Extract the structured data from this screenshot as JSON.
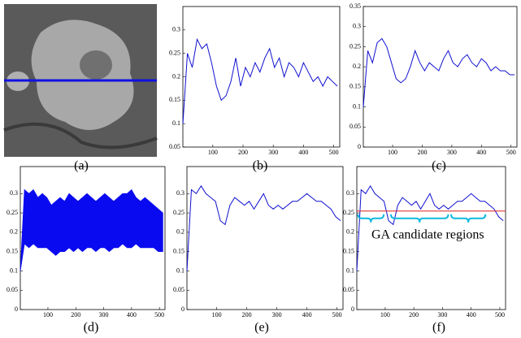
{
  "image": {
    "caption": "(a)"
  },
  "chart_data": [
    {
      "type": "line",
      "caption": "(b)",
      "color": "#1010d0",
      "x": [
        1,
        16,
        32,
        48,
        64,
        80,
        96,
        112,
        128,
        144,
        160,
        176,
        192,
        208,
        224,
        240,
        256,
        272,
        288,
        304,
        320,
        336,
        352,
        368,
        384,
        400,
        416,
        432,
        448,
        464,
        480,
        496,
        512
      ],
      "values": [
        0.1,
        0.25,
        0.22,
        0.28,
        0.26,
        0.27,
        0.23,
        0.18,
        0.15,
        0.16,
        0.19,
        0.24,
        0.18,
        0.22,
        0.2,
        0.23,
        0.21,
        0.24,
        0.26,
        0.22,
        0.24,
        0.2,
        0.23,
        0.22,
        0.2,
        0.23,
        0.21,
        0.19,
        0.2,
        0.18,
        0.2,
        0.19,
        0.18
      ],
      "xlim": [
        1,
        520
      ],
      "xticks": [
        100,
        200,
        300,
        400,
        500
      ],
      "ylim": [
        0.05,
        0.35
      ],
      "yticks": [
        0.05,
        0.1,
        0.15,
        0.2,
        0.25,
        0.3
      ]
    },
    {
      "type": "line",
      "caption": "(c)",
      "color": "#1010d0",
      "x": [
        1,
        16,
        32,
        48,
        64,
        80,
        96,
        112,
        128,
        144,
        160,
        176,
        192,
        208,
        224,
        240,
        256,
        272,
        288,
        304,
        320,
        336,
        352,
        368,
        384,
        400,
        416,
        432,
        448,
        464,
        480,
        496,
        512
      ],
      "values": [
        0.1,
        0.24,
        0.21,
        0.26,
        0.27,
        0.25,
        0.21,
        0.17,
        0.16,
        0.17,
        0.2,
        0.24,
        0.21,
        0.19,
        0.21,
        0.2,
        0.19,
        0.22,
        0.24,
        0.21,
        0.2,
        0.22,
        0.23,
        0.21,
        0.2,
        0.22,
        0.21,
        0.19,
        0.2,
        0.19,
        0.19,
        0.18,
        0.18
      ],
      "xlim": [
        1,
        520
      ],
      "xticks": [
        100,
        200,
        300,
        400,
        500
      ],
      "ylim": [
        0,
        0.35
      ],
      "yticks": [
        0,
        0.05,
        0.1,
        0.15,
        0.2,
        0.25,
        0.3,
        0.35
      ]
    },
    {
      "type": "range",
      "caption": "(d)",
      "color": "#0a0af0",
      "x": [
        1,
        16,
        32,
        48,
        64,
        80,
        96,
        112,
        128,
        144,
        160,
        176,
        192,
        208,
        224,
        240,
        256,
        272,
        288,
        304,
        320,
        336,
        352,
        368,
        384,
        400,
        416,
        432,
        448,
        464,
        480,
        496,
        512
      ],
      "upper": [
        0.1,
        0.31,
        0.3,
        0.31,
        0.29,
        0.3,
        0.29,
        0.27,
        0.28,
        0.29,
        0.28,
        0.3,
        0.29,
        0.28,
        0.29,
        0.3,
        0.29,
        0.28,
        0.29,
        0.3,
        0.29,
        0.28,
        0.29,
        0.3,
        0.3,
        0.31,
        0.29,
        0.28,
        0.29,
        0.28,
        0.27,
        0.26,
        0.25
      ],
      "lower": [
        0.1,
        0.17,
        0.16,
        0.17,
        0.16,
        0.16,
        0.16,
        0.15,
        0.14,
        0.15,
        0.15,
        0.16,
        0.15,
        0.16,
        0.15,
        0.16,
        0.16,
        0.15,
        0.16,
        0.16,
        0.15,
        0.16,
        0.16,
        0.17,
        0.16,
        0.16,
        0.17,
        0.16,
        0.16,
        0.16,
        0.16,
        0.15,
        0.15
      ],
      "xlim": [
        1,
        520
      ],
      "xticks": [
        100,
        200,
        300,
        400,
        500
      ],
      "ylim": [
        0,
        0.37
      ],
      "yticks": [
        0,
        0.05,
        0.1,
        0.15,
        0.2,
        0.25,
        0.3
      ]
    },
    {
      "type": "line",
      "caption": "(e)",
      "color": "#1010d0",
      "x": [
        1,
        16,
        32,
        48,
        64,
        80,
        96,
        112,
        128,
        144,
        160,
        176,
        192,
        208,
        224,
        240,
        256,
        272,
        288,
        304,
        320,
        336,
        352,
        368,
        384,
        400,
        416,
        432,
        448,
        464,
        480,
        496,
        512
      ],
      "values": [
        0.1,
        0.31,
        0.3,
        0.32,
        0.3,
        0.29,
        0.28,
        0.23,
        0.22,
        0.27,
        0.29,
        0.28,
        0.27,
        0.28,
        0.26,
        0.28,
        0.3,
        0.27,
        0.26,
        0.27,
        0.26,
        0.27,
        0.28,
        0.28,
        0.29,
        0.3,
        0.29,
        0.28,
        0.28,
        0.27,
        0.26,
        0.24,
        0.23
      ],
      "xlim": [
        1,
        520
      ],
      "xticks": [
        100,
        200,
        300,
        400,
        500
      ],
      "ylim": [
        0,
        0.37
      ],
      "yticks": [
        0,
        0.05,
        0.1,
        0.15,
        0.2,
        0.25,
        0.3
      ]
    },
    {
      "type": "line",
      "caption": "(f)",
      "color": "#1010d0",
      "x": [
        1,
        16,
        32,
        48,
        64,
        80,
        96,
        112,
        128,
        144,
        160,
        176,
        192,
        208,
        224,
        240,
        256,
        272,
        288,
        304,
        320,
        336,
        352,
        368,
        384,
        400,
        416,
        432,
        448,
        464,
        480,
        496,
        512
      ],
      "values": [
        0.1,
        0.31,
        0.3,
        0.32,
        0.3,
        0.29,
        0.28,
        0.23,
        0.22,
        0.27,
        0.29,
        0.28,
        0.27,
        0.28,
        0.26,
        0.28,
        0.3,
        0.27,
        0.26,
        0.27,
        0.26,
        0.27,
        0.28,
        0.28,
        0.29,
        0.3,
        0.29,
        0.28,
        0.28,
        0.27,
        0.26,
        0.24,
        0.23
      ],
      "xlim": [
        1,
        520
      ],
      "xticks": [
        100,
        200,
        300,
        400,
        500
      ],
      "ylim": [
        0,
        0.37
      ],
      "yticks": [
        0,
        0.05,
        0.1,
        0.15,
        0.2,
        0.25,
        0.3
      ],
      "threshold": 0.255,
      "threshold_color": "#e02020",
      "regions": [
        [
          5,
          95
        ],
        [
          120,
          320
        ],
        [
          330,
          450
        ]
      ],
      "region_color": "#10b8e0",
      "annotation": "GA candidate regions"
    }
  ]
}
